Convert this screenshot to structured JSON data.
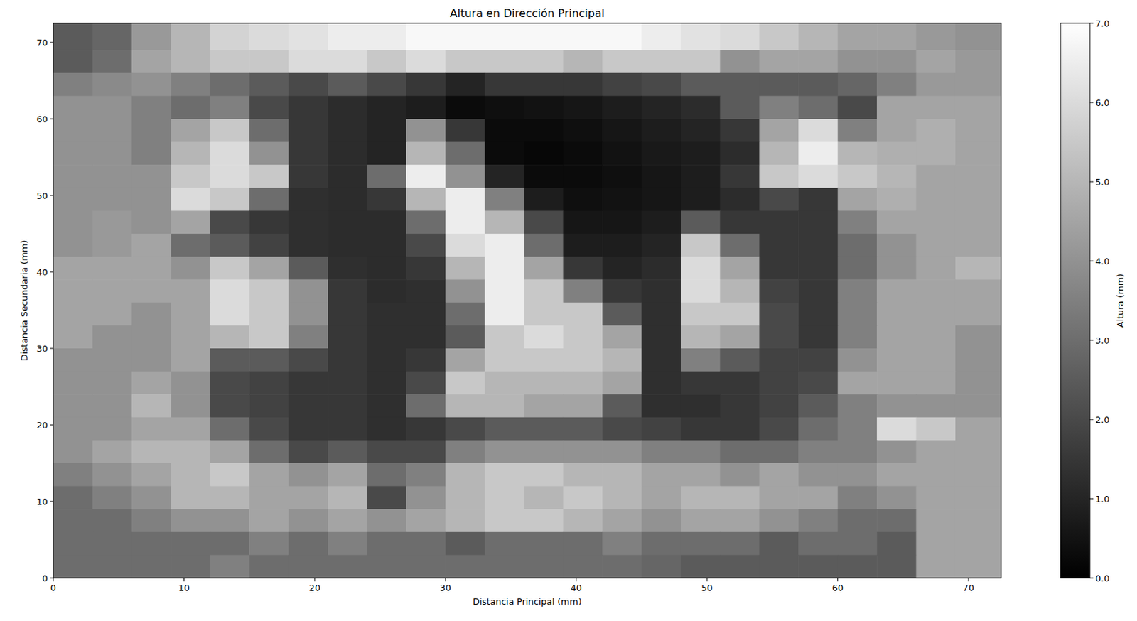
{
  "chart_data": {
    "type": "heatmap",
    "title": "Altura en Dirección Principal",
    "x_label": "Distancia Principal (mm)",
    "y_label": "Distancia Secundaria (mm)",
    "xlim": [
      0,
      72.5
    ],
    "ylim": [
      0,
      72.5
    ],
    "xticks": [
      0,
      10,
      20,
      30,
      40,
      50,
      60,
      70
    ],
    "yticks": [
      0,
      10,
      20,
      30,
      40,
      50,
      60,
      70
    ],
    "x": [
      1.5,
      4.5,
      7.5,
      10.5,
      13.5,
      16.5,
      19.5,
      22.5,
      25.5,
      28.5,
      31.5,
      34.5,
      37.5,
      40.5,
      43.5,
      46.5,
      49.5,
      52.5,
      55.5,
      58.5,
      61.5,
      64.5,
      67.5,
      70.5
    ],
    "y": [
      70.5,
      67.5,
      64.5,
      61.5,
      58.5,
      55.5,
      52.5,
      49.5,
      46.5,
      43.5,
      40.5,
      37.5,
      34.5,
      31.5,
      28.5,
      25.5,
      22.5,
      19.5,
      16.5,
      13.5,
      10.5,
      7.5,
      4.5,
      1.5
    ],
    "cells": [
      [
        2.5,
        2.8,
        4.2,
        5,
        5.8,
        6,
        6.2,
        6.5,
        6.5,
        6.8,
        6.8,
        6.8,
        6.8,
        6.8,
        6.8,
        6.5,
        6.2,
        6,
        5.5,
        5,
        4.5,
        4.5,
        4.2,
        4
      ],
      [
        2.5,
        3,
        4.5,
        5,
        5.5,
        5.5,
        6,
        6,
        5.5,
        6,
        5.5,
        5.5,
        5.5,
        5,
        5.5,
        5.5,
        5.5,
        4,
        4.5,
        4.5,
        4,
        4,
        4.5,
        4.2
      ],
      [
        3.5,
        3.8,
        4,
        3.5,
        3,
        2.5,
        2,
        2.5,
        2,
        1.5,
        1,
        1.5,
        1.5,
        1.5,
        1.8,
        2,
        2.5,
        2.5,
        2.5,
        2.5,
        2.8,
        3.5,
        4.2,
        4.2
      ],
      [
        4,
        4,
        3.5,
        3,
        3.5,
        2,
        1.5,
        1.2,
        1,
        0.8,
        0.3,
        0.4,
        0.5,
        0.6,
        0.8,
        1,
        1.2,
        2.5,
        3.5,
        3,
        2,
        4.5,
        4.5,
        4.5
      ],
      [
        4,
        4,
        3.5,
        4.5,
        5.5,
        3,
        1.5,
        1.2,
        1,
        4,
        1.5,
        0.3,
        0.3,
        0.4,
        0.6,
        0.8,
        1,
        1.5,
        4.5,
        6,
        3.5,
        4.5,
        4.8,
        4.5
      ],
      [
        4,
        4,
        3.5,
        5,
        6,
        4,
        1.5,
        1.2,
        1,
        5,
        3,
        0.3,
        0.2,
        0.3,
        0.5,
        0.7,
        0.8,
        1.2,
        5,
        6.5,
        5,
        4.8,
        4.8,
        4.5
      ],
      [
        4,
        4,
        4,
        5.5,
        6,
        5.5,
        1.5,
        1.2,
        3,
        6.5,
        4,
        1,
        0.3,
        0.3,
        0.4,
        0.6,
        0.8,
        1.5,
        5.5,
        6,
        5.5,
        5,
        4.5,
        4.5
      ],
      [
        4,
        4,
        4,
        6,
        5.5,
        3,
        1.3,
        1.2,
        1.5,
        5,
        6.5,
        3.5,
        0.8,
        0.4,
        0.5,
        0.6,
        0.8,
        1.2,
        2,
        1.5,
        4.5,
        4.8,
        4.5,
        4.5
      ],
      [
        4,
        4.2,
        4,
        4.5,
        2,
        1.5,
        1.3,
        1.2,
        1.2,
        3,
        6.5,
        5,
        2,
        0.6,
        0.6,
        0.8,
        2.5,
        1.5,
        1.5,
        1.5,
        3.5,
        4.5,
        4.5,
        4.5
      ],
      [
        4,
        4.2,
        4.5,
        3,
        2.5,
        1.8,
        1.3,
        1.2,
        1.2,
        2,
        6,
        6.5,
        3,
        0.8,
        0.8,
        1,
        5.5,
        3,
        1.5,
        1.5,
        3,
        4,
        4.5,
        4.5
      ],
      [
        4.5,
        4.5,
        4.5,
        4,
        5.5,
        4.5,
        2.5,
        1.3,
        1.2,
        1.5,
        5,
        6.5,
        4.5,
        1.5,
        1,
        1.2,
        6,
        4.5,
        1.5,
        1.5,
        3,
        4,
        4.5,
        5
      ],
      [
        4.5,
        4.5,
        4.5,
        4.5,
        6,
        5.5,
        4,
        1.5,
        1.2,
        1.3,
        4,
        6.5,
        5.5,
        3.5,
        1.5,
        1.3,
        6,
        5,
        1.8,
        1.5,
        3.5,
        4.5,
        4.5,
        4.5
      ],
      [
        4.5,
        4.5,
        4,
        4.5,
        6,
        5.5,
        4,
        1.5,
        1.3,
        1.3,
        3,
        6.5,
        5.5,
        5.5,
        2.5,
        1.3,
        5.5,
        5.5,
        2,
        1.5,
        3.5,
        4.5,
        4.5,
        4.5
      ],
      [
        4.5,
        4,
        4,
        4.5,
        5,
        5.5,
        3.5,
        1.5,
        1.3,
        1.3,
        2.5,
        5.5,
        6,
        5.5,
        4.5,
        1.3,
        5,
        4.5,
        2,
        1.5,
        3.5,
        4.5,
        4.5,
        4
      ],
      [
        4,
        4,
        4,
        4.5,
        2.5,
        2.5,
        2,
        1.5,
        1.3,
        1.5,
        4.5,
        5.5,
        5.5,
        5.5,
        5,
        1.3,
        3.5,
        2.5,
        1.8,
        1.8,
        4,
        4.5,
        4.5,
        4
      ],
      [
        4,
        4,
        4.5,
        4,
        2,
        1.8,
        1.5,
        1.5,
        1.3,
        2,
        5.5,
        5,
        5,
        5,
        4.5,
        1.3,
        1.5,
        1.5,
        1.8,
        2,
        4.5,
        4.5,
        4.5,
        4
      ],
      [
        4,
        4,
        5,
        4,
        2,
        1.8,
        1.5,
        1.5,
        1.3,
        3,
        5,
        5,
        4.5,
        4.5,
        2.5,
        1.3,
        1.3,
        1.5,
        1.8,
        2.5,
        3.5,
        4,
        4,
        4
      ],
      [
        4,
        4,
        4.5,
        4.5,
        3,
        2,
        1.5,
        1.5,
        1.3,
        1.5,
        2,
        2.5,
        2.5,
        2.5,
        2,
        1.8,
        1.5,
        1.5,
        2,
        3,
        3.5,
        6,
        5.5,
        4.5
      ],
      [
        4,
        4.5,
        5,
        5,
        4.5,
        3,
        2,
        2.5,
        2,
        2,
        3.5,
        4,
        4,
        4,
        4,
        3.5,
        3.5,
        3,
        3,
        3.5,
        3.5,
        4,
        4.5,
        4.5
      ],
      [
        3.5,
        4,
        4.5,
        5,
        5.5,
        4.5,
        4,
        4.5,
        3,
        3.5,
        5,
        5.5,
        5.5,
        5,
        5,
        4.5,
        4.5,
        4,
        4.5,
        4,
        4,
        4.5,
        4.5,
        4.5
      ],
      [
        3,
        3.5,
        4,
        5,
        5,
        4.5,
        4.5,
        5,
        2,
        4,
        5,
        5.5,
        5,
        5.5,
        5,
        4.5,
        5,
        5,
        4.5,
        4.5,
        3.5,
        4,
        4.5,
        4.5
      ],
      [
        3,
        3,
        3.5,
        4,
        4,
        4.5,
        4,
        4.5,
        4,
        4.5,
        5,
        5.5,
        5.5,
        5,
        4.5,
        4,
        4.5,
        4.5,
        4,
        3.5,
        3,
        3,
        4.5,
        4.5
      ],
      [
        3,
        3,
        3,
        3,
        3,
        3.5,
        3,
        3.5,
        3,
        3,
        2.5,
        3,
        3,
        3,
        3.5,
        3,
        3,
        3,
        2.5,
        3,
        3,
        2.5,
        4.5,
        4.5
      ],
      [
        3,
        3,
        3,
        3,
        3.5,
        3,
        3,
        3,
        3,
        3,
        3,
        3,
        3,
        3,
        3,
        2.8,
        2.5,
        2.5,
        2.5,
        2.5,
        2.5,
        2.5,
        4.5,
        4.5
      ]
    ],
    "colorbar": {
      "label": "Altura (mm)",
      "range": [
        0,
        7
      ],
      "ticks": [
        {
          "value": 0,
          "label": "0.0"
        },
        {
          "value": 1,
          "label": "1.0"
        },
        {
          "value": 2,
          "label": "2.0"
        },
        {
          "value": 3,
          "label": "3.0"
        },
        {
          "value": 4,
          "label": "4.0"
        },
        {
          "value": 5,
          "label": "5.0"
        },
        {
          "value": 6,
          "label": "6.0"
        },
        {
          "value": 7,
          "label": "7.0"
        }
      ]
    }
  }
}
